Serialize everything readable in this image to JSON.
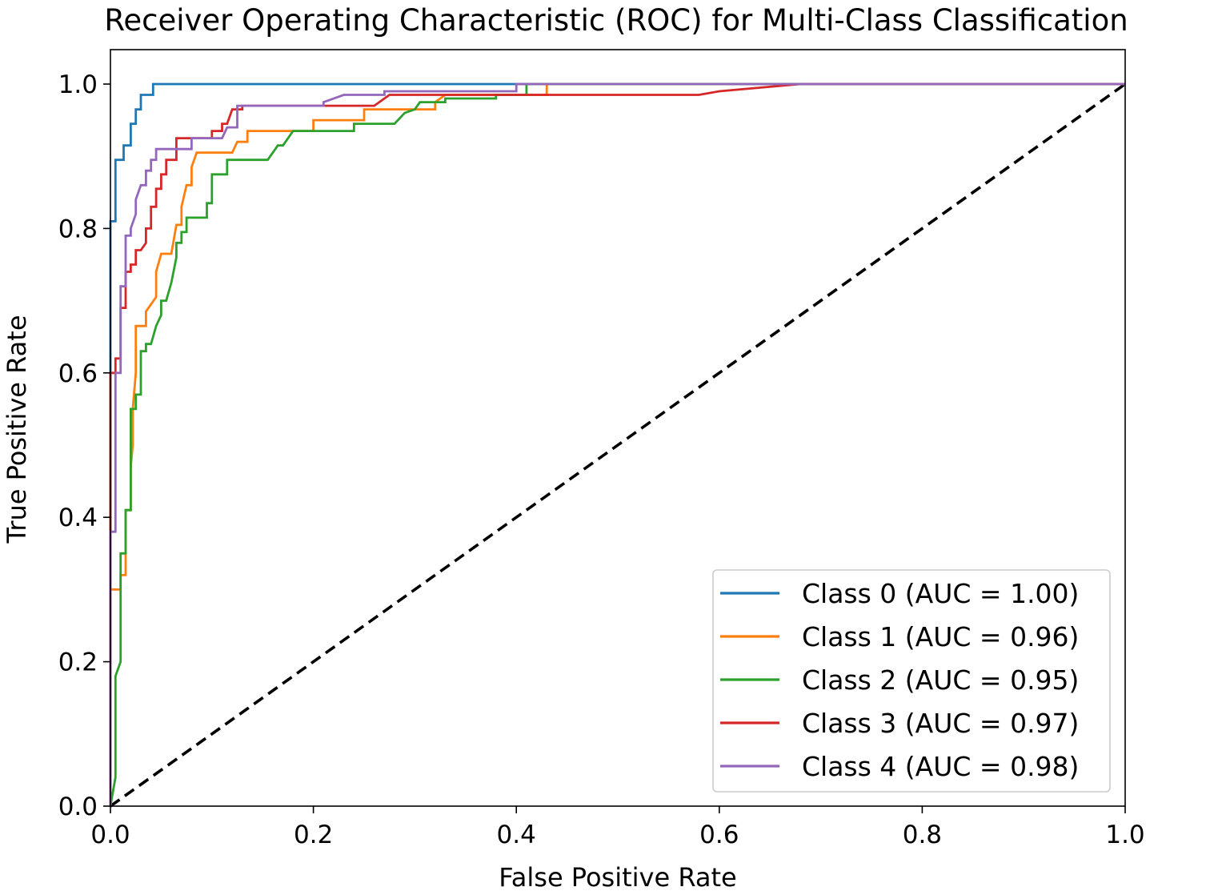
{
  "chart_data": {
    "type": "line",
    "title": "Receiver Operating Characteristic (ROC) for Multi-Class Classification",
    "xlabel": "False Positive Rate",
    "ylabel": "True Positive Rate",
    "xlim": [
      0.0,
      1.0
    ],
    "ylim": [
      0.0,
      1.0
    ],
    "x_ticks": [
      0.0,
      0.2,
      0.4,
      0.6,
      0.8,
      1.0
    ],
    "y_ticks": [
      0.0,
      0.2,
      0.4,
      0.6,
      0.8,
      1.0
    ],
    "x_tick_labels": [
      "0.0",
      "0.2",
      "0.4",
      "0.6",
      "0.8",
      "1.0"
    ],
    "y_tick_labels": [
      "0.0",
      "0.2",
      "0.4",
      "0.6",
      "0.8",
      "1.0"
    ],
    "grid": false,
    "legend_position": "lower-right",
    "series": [
      {
        "name": "Class 0 (AUC = 1.00)",
        "color": "#1f77b4",
        "points": [
          [
            0,
            0
          ],
          [
            0,
            0.81
          ],
          [
            0.005,
            0.81
          ],
          [
            0.005,
            0.895
          ],
          [
            0.013,
            0.895
          ],
          [
            0.013,
            0.915
          ],
          [
            0.02,
            0.915
          ],
          [
            0.02,
            0.945
          ],
          [
            0.025,
            0.945
          ],
          [
            0.025,
            0.965
          ],
          [
            0.03,
            0.965
          ],
          [
            0.03,
            0.985
          ],
          [
            0.042,
            0.985
          ],
          [
            0.042,
            1.0
          ],
          [
            1.0,
            1.0
          ]
        ]
      },
      {
        "name": "Class 1 (AUC = 0.96)",
        "color": "#ff7f0e",
        "points": [
          [
            0,
            0
          ],
          [
            0,
            0.3
          ],
          [
            0.01,
            0.3
          ],
          [
            0.01,
            0.32
          ],
          [
            0.015,
            0.32
          ],
          [
            0.015,
            0.41
          ],
          [
            0.02,
            0.41
          ],
          [
            0.02,
            0.47
          ],
          [
            0.022,
            0.5
          ],
          [
            0.022,
            0.55
          ],
          [
            0.025,
            0.6
          ],
          [
            0.025,
            0.665
          ],
          [
            0.035,
            0.665
          ],
          [
            0.035,
            0.685
          ],
          [
            0.045,
            0.705
          ],
          [
            0.045,
            0.74
          ],
          [
            0.05,
            0.765
          ],
          [
            0.06,
            0.765
          ],
          [
            0.065,
            0.805
          ],
          [
            0.07,
            0.805
          ],
          [
            0.07,
            0.83
          ],
          [
            0.075,
            0.86
          ],
          [
            0.08,
            0.86
          ],
          [
            0.08,
            0.885
          ],
          [
            0.085,
            0.905
          ],
          [
            0.12,
            0.905
          ],
          [
            0.125,
            0.92
          ],
          [
            0.135,
            0.92
          ],
          [
            0.135,
            0.935
          ],
          [
            0.2,
            0.935
          ],
          [
            0.2,
            0.95
          ],
          [
            0.25,
            0.95
          ],
          [
            0.25,
            0.965
          ],
          [
            0.32,
            0.965
          ],
          [
            0.32,
            0.975
          ],
          [
            0.33,
            0.985
          ],
          [
            0.43,
            0.985
          ],
          [
            0.43,
            1.0
          ],
          [
            1.0,
            1.0
          ]
        ]
      },
      {
        "name": "Class 2 (AUC = 0.95)",
        "color": "#2ca02c",
        "points": [
          [
            0,
            0
          ],
          [
            0.005,
            0.04
          ],
          [
            0.005,
            0.18
          ],
          [
            0.01,
            0.2
          ],
          [
            0.01,
            0.35
          ],
          [
            0.015,
            0.35
          ],
          [
            0.015,
            0.41
          ],
          [
            0.02,
            0.41
          ],
          [
            0.02,
            0.55
          ],
          [
            0.025,
            0.55
          ],
          [
            0.025,
            0.57
          ],
          [
            0.03,
            0.57
          ],
          [
            0.03,
            0.63
          ],
          [
            0.035,
            0.63
          ],
          [
            0.035,
            0.64
          ],
          [
            0.04,
            0.64
          ],
          [
            0.045,
            0.665
          ],
          [
            0.05,
            0.68
          ],
          [
            0.05,
            0.7
          ],
          [
            0.055,
            0.7
          ],
          [
            0.06,
            0.725
          ],
          [
            0.065,
            0.76
          ],
          [
            0.065,
            0.78
          ],
          [
            0.07,
            0.78
          ],
          [
            0.07,
            0.795
          ],
          [
            0.075,
            0.795
          ],
          [
            0.075,
            0.815
          ],
          [
            0.095,
            0.815
          ],
          [
            0.095,
            0.835
          ],
          [
            0.1,
            0.835
          ],
          [
            0.1,
            0.875
          ],
          [
            0.115,
            0.875
          ],
          [
            0.115,
            0.895
          ],
          [
            0.155,
            0.895
          ],
          [
            0.165,
            0.915
          ],
          [
            0.17,
            0.915
          ],
          [
            0.18,
            0.935
          ],
          [
            0.24,
            0.935
          ],
          [
            0.24,
            0.945
          ],
          [
            0.28,
            0.945
          ],
          [
            0.29,
            0.96
          ],
          [
            0.3,
            0.965
          ],
          [
            0.305,
            0.975
          ],
          [
            0.33,
            0.975
          ],
          [
            0.33,
            0.98
          ],
          [
            0.38,
            0.98
          ],
          [
            0.38,
            0.985
          ],
          [
            0.41,
            0.985
          ],
          [
            0.41,
            1.0
          ],
          [
            1.0,
            1.0
          ]
        ]
      },
      {
        "name": "Class 3 (AUC = 0.97)",
        "color": "#d62728",
        "points": [
          [
            0,
            0
          ],
          [
            0,
            0.6
          ],
          [
            0.005,
            0.6
          ],
          [
            0.005,
            0.62
          ],
          [
            0.01,
            0.62
          ],
          [
            0.01,
            0.69
          ],
          [
            0.015,
            0.69
          ],
          [
            0.015,
            0.74
          ],
          [
            0.02,
            0.74
          ],
          [
            0.02,
            0.75
          ],
          [
            0.025,
            0.75
          ],
          [
            0.025,
            0.77
          ],
          [
            0.03,
            0.77
          ],
          [
            0.035,
            0.78
          ],
          [
            0.035,
            0.8
          ],
          [
            0.04,
            0.8
          ],
          [
            0.04,
            0.83
          ],
          [
            0.045,
            0.83
          ],
          [
            0.045,
            0.855
          ],
          [
            0.05,
            0.855
          ],
          [
            0.05,
            0.875
          ],
          [
            0.055,
            0.875
          ],
          [
            0.055,
            0.895
          ],
          [
            0.065,
            0.895
          ],
          [
            0.065,
            0.925
          ],
          [
            0.1,
            0.925
          ],
          [
            0.1,
            0.935
          ],
          [
            0.11,
            0.935
          ],
          [
            0.11,
            0.945
          ],
          [
            0.115,
            0.945
          ],
          [
            0.12,
            0.965
          ],
          [
            0.13,
            0.965
          ],
          [
            0.13,
            0.97
          ],
          [
            0.26,
            0.97
          ],
          [
            0.275,
            0.985
          ],
          [
            0.58,
            0.985
          ],
          [
            0.6,
            0.99
          ],
          [
            0.68,
            1.0
          ],
          [
            1.0,
            1.0
          ]
        ]
      },
      {
        "name": "Class 4 (AUC = 0.98)",
        "color": "#9467bd",
        "points": [
          [
            0,
            0
          ],
          [
            0,
            0.38
          ],
          [
            0.005,
            0.38
          ],
          [
            0.005,
            0.6
          ],
          [
            0.01,
            0.6
          ],
          [
            0.01,
            0.72
          ],
          [
            0.015,
            0.72
          ],
          [
            0.015,
            0.79
          ],
          [
            0.02,
            0.79
          ],
          [
            0.02,
            0.8
          ],
          [
            0.025,
            0.82
          ],
          [
            0.025,
            0.84
          ],
          [
            0.03,
            0.86
          ],
          [
            0.035,
            0.86
          ],
          [
            0.035,
            0.88
          ],
          [
            0.04,
            0.88
          ],
          [
            0.04,
            0.895
          ],
          [
            0.045,
            0.895
          ],
          [
            0.045,
            0.91
          ],
          [
            0.08,
            0.91
          ],
          [
            0.08,
            0.925
          ],
          [
            0.11,
            0.925
          ],
          [
            0.115,
            0.94
          ],
          [
            0.125,
            0.94
          ],
          [
            0.125,
            0.97
          ],
          [
            0.21,
            0.97
          ],
          [
            0.21,
            0.975
          ],
          [
            0.23,
            0.985
          ],
          [
            0.27,
            0.985
          ],
          [
            0.27,
            0.99
          ],
          [
            0.4,
            0.99
          ],
          [
            0.4,
            1.0
          ],
          [
            1.0,
            1.0
          ]
        ]
      }
    ],
    "reference_line": {
      "style": "dashed",
      "color": "#000000",
      "points": [
        [
          0,
          0
        ],
        [
          1,
          1
        ]
      ]
    }
  }
}
